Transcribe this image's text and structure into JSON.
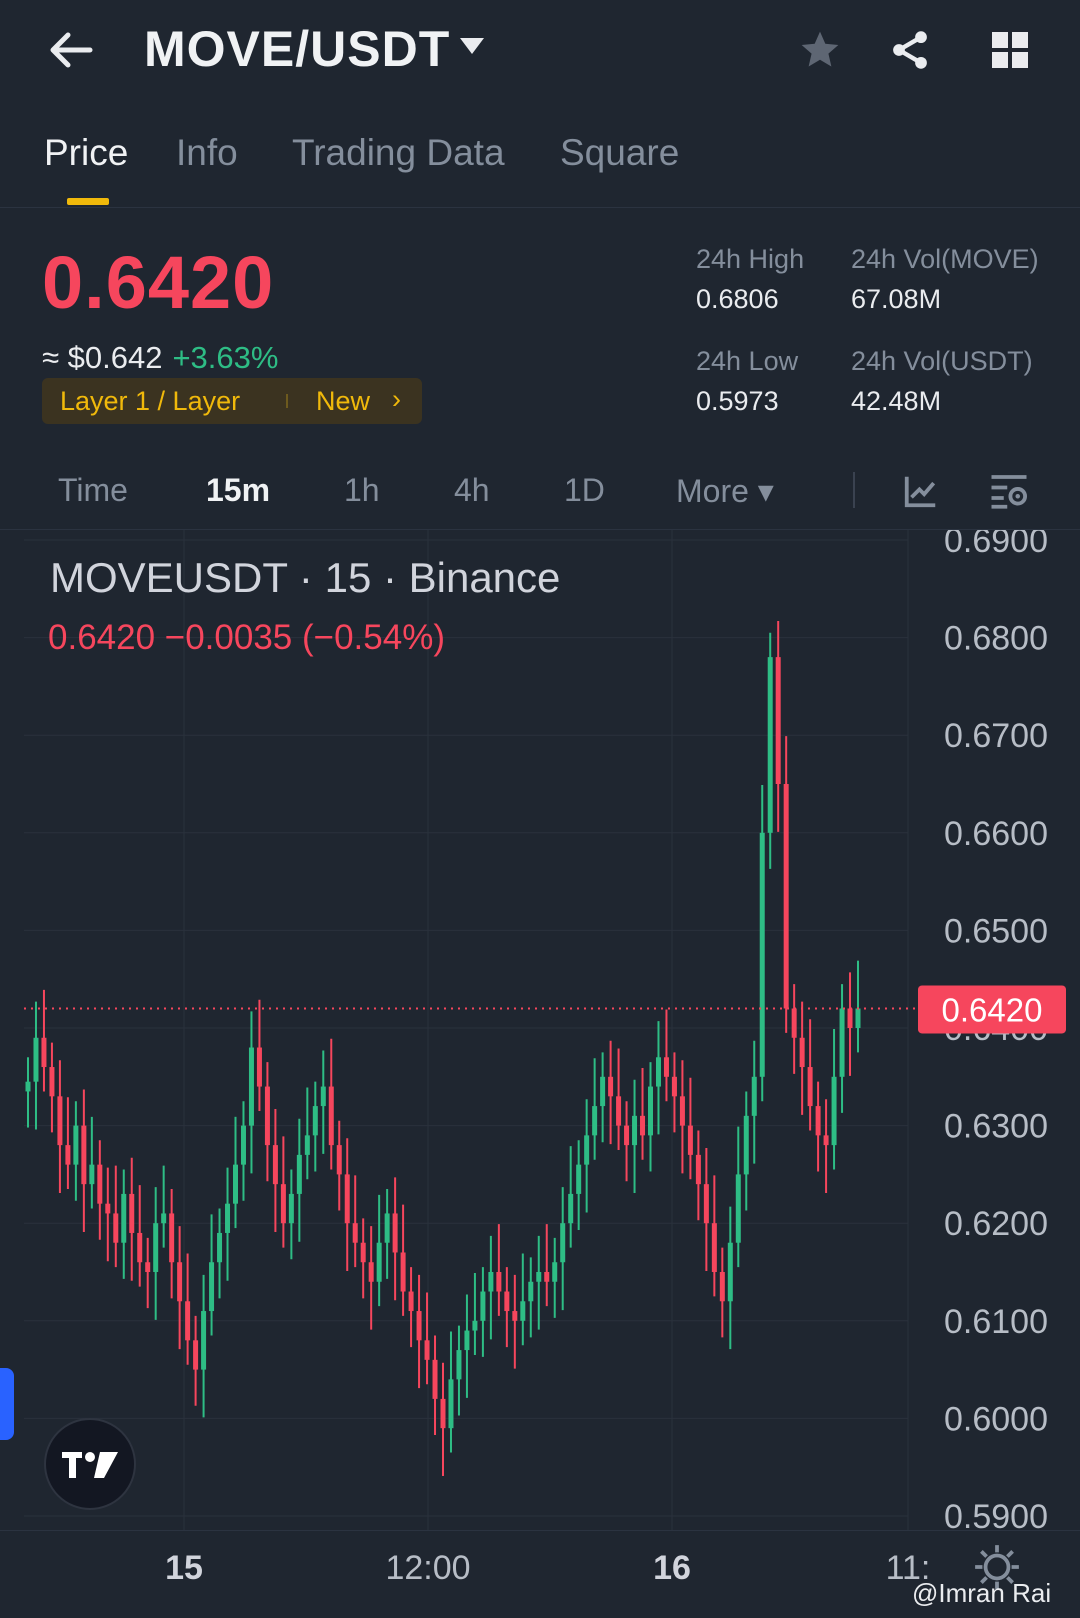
{
  "header": {
    "pair": "MOVE/USDT",
    "back_icon": "arrow-left-icon",
    "caret_icon": "caret-down-icon",
    "actions": [
      "star-icon",
      "share-icon",
      "grid-icon"
    ]
  },
  "tabs": [
    {
      "label": "Price",
      "active": true
    },
    {
      "label": "Info",
      "active": false
    },
    {
      "label": "Trading Data",
      "active": false
    },
    {
      "label": "Square",
      "active": false
    }
  ],
  "ticker": {
    "last_price": "0.6420",
    "usd_price": "≈ $0.642",
    "change_pct": "+3.63%",
    "tag_label": "Layer 1 / Layer",
    "tag_new": "New",
    "tag_arrow": "›",
    "high_label": "24h High",
    "high_value": "0.6806",
    "low_label": "24h Low",
    "low_value": "0.5973",
    "vol_base_label": "24h Vol(MOVE)",
    "vol_base_value": "67.08M",
    "vol_quote_label": "24h Vol(USDT)",
    "vol_quote_value": "42.48M"
  },
  "intervals": [
    {
      "label": "Time",
      "active": false
    },
    {
      "label": "15m",
      "active": true
    },
    {
      "label": "1h",
      "active": false
    },
    {
      "label": "4h",
      "active": false
    },
    {
      "label": "1D",
      "active": false
    },
    {
      "label": "More ▾",
      "active": false
    }
  ],
  "chart_header": {
    "title": "MOVEUSDT · 15 · Binance",
    "ohlc": "0.6420  −0.0035 (−0.54%)"
  },
  "colors": {
    "up": "#2ebd85",
    "down": "#f6465d",
    "accent": "#f0b90b",
    "background": "#1f2630"
  },
  "chart_data": {
    "type": "candlestick",
    "title": "MOVEUSDT · 15 · Binance",
    "ylim": [
      0.59,
      0.69
    ],
    "y_ticks": [
      "0.6900",
      "0.6800",
      "0.6700",
      "0.6600",
      "0.6500",
      "0.6400",
      "0.6300",
      "0.6200",
      "0.6100",
      "0.6000",
      "0.5900"
    ],
    "x_ticks": [
      "15",
      "12:00",
      "16",
      "11:"
    ],
    "grid": true,
    "last_price_marker": "0.6420",
    "close_series": [
      0.6345,
      0.639,
      0.636,
      0.633,
      0.628,
      0.626,
      0.63,
      0.624,
      0.626,
      0.622,
      0.621,
      0.618,
      0.623,
      0.619,
      0.616,
      0.615,
      0.62,
      0.621,
      0.616,
      0.612,
      0.608,
      0.605,
      0.611,
      0.616,
      0.619,
      0.622,
      0.626,
      0.63,
      0.638,
      0.634,
      0.628,
      0.624,
      0.62,
      0.623,
      0.627,
      0.629,
      0.632,
      0.634,
      0.628,
      0.625,
      0.62,
      0.618,
      0.616,
      0.614,
      0.618,
      0.621,
      0.617,
      0.613,
      0.611,
      0.608,
      0.606,
      0.602,
      0.599,
      0.604,
      0.607,
      0.609,
      0.61,
      0.613,
      0.615,
      0.613,
      0.611,
      0.61,
      0.612,
      0.614,
      0.615,
      0.614,
      0.616,
      0.62,
      0.623,
      0.626,
      0.629,
      0.632,
      0.635,
      0.633,
      0.63,
      0.628,
      0.631,
      0.629,
      0.634,
      0.637,
      0.635,
      0.633,
      0.63,
      0.627,
      0.624,
      0.62,
      0.615,
      0.612,
      0.618,
      0.625,
      0.631,
      0.635,
      0.66,
      0.678,
      0.665,
      0.642,
      0.639,
      0.636,
      0.632,
      0.629,
      0.628,
      0.635,
      0.642,
      0.64,
      0.642
    ]
  },
  "tv_logo_text": "TV",
  "watermark": "@Imran Rai"
}
